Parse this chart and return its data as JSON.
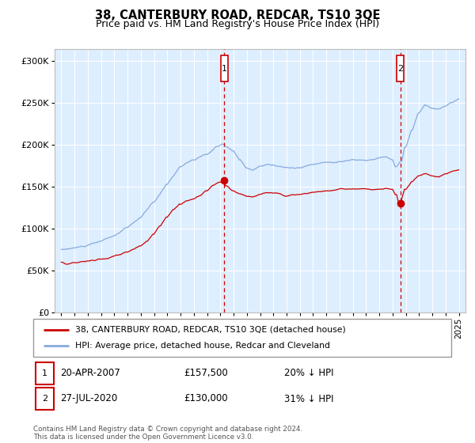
{
  "title": "38, CANTERBURY ROAD, REDCAR, TS10 3QE",
  "subtitle": "Price paid vs. HM Land Registry's House Price Index (HPI)",
  "title_fontsize": 10.5,
  "subtitle_fontsize": 9,
  "ylabel_ticks": [
    "£0",
    "£50K",
    "£100K",
    "£150K",
    "£200K",
    "£250K",
    "£300K"
  ],
  "ytick_vals": [
    0,
    50000,
    100000,
    150000,
    200000,
    250000,
    300000
  ],
  "ylim": [
    0,
    315000
  ],
  "background_color": "#ffffff",
  "plot_bg_color": "#ddeeff",
  "grid_color": "#ffffff",
  "legend_label_red": "38, CANTERBURY ROAD, REDCAR, TS10 3QE (detached house)",
  "legend_label_blue": "HPI: Average price, detached house, Redcar and Cleveland",
  "marker1_year": 2007.3,
  "marker2_year": 2020.58,
  "marker1_price": 157500,
  "marker2_price": 130000,
  "footnote": "Contains HM Land Registry data © Crown copyright and database right 2024.\nThis data is licensed under the Open Government Licence v3.0.",
  "red_line_color": "#cc0000",
  "blue_line_color": "#88aadd",
  "marker_box_color": "#cc0000",
  "marker_dot_color": "#cc0000"
}
